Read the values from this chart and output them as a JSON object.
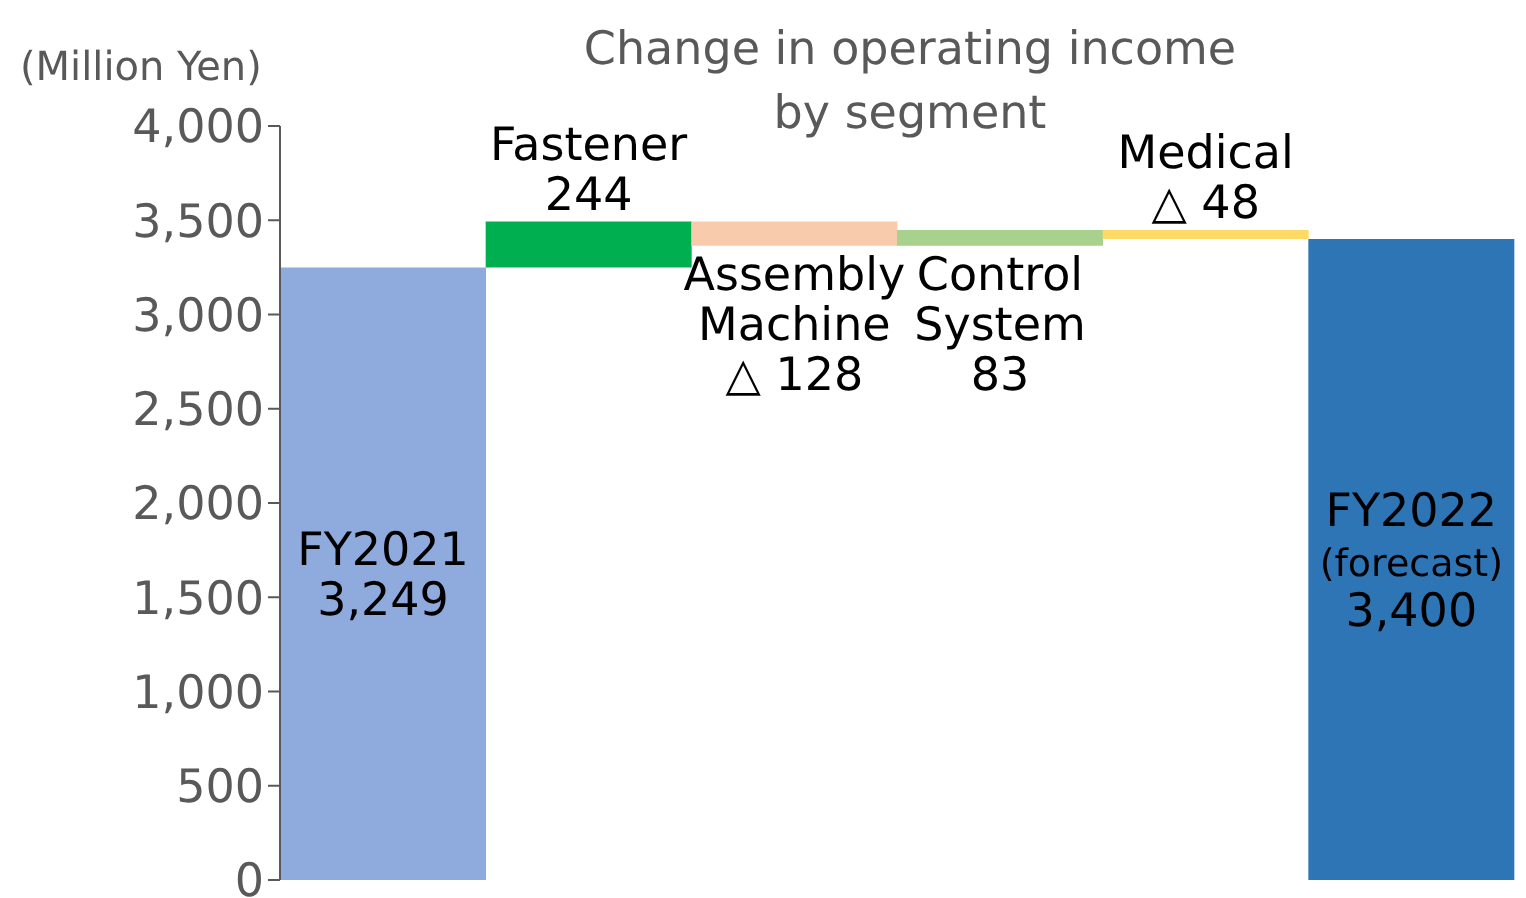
{
  "chart_data": {
    "type": "bar",
    "title": "Change in operating income\nby segment",
    "ylabel": "(Million Yen)",
    "categories": [
      "FY2021",
      "Fastener",
      "Assembly Machine",
      "Control System",
      "Medical",
      "FY2022 (forecast)"
    ],
    "values": [
      3249,
      244,
      -128,
      83,
      -48,
      3400
    ],
    "base": [
      0,
      3249,
      3493,
      3365,
      3448,
      0
    ],
    "colors": [
      "#8faadc",
      "#00b050",
      "#f8cbad",
      "#a9d18e",
      "#ffd966",
      "#2e75b6"
    ],
    "value_labels": [
      "3,249",
      "244",
      "△ 128",
      "83",
      "△ 48",
      "3,400"
    ],
    "ylim": [
      0,
      4000
    ],
    "yticks": [
      {
        "value": 0,
        "label": "0"
      },
      {
        "value": 500,
        "label": "500"
      },
      {
        "value": 1000,
        "label": "1,000"
      },
      {
        "value": 1500,
        "label": "1,500"
      },
      {
        "value": 2000,
        "label": "2,000"
      },
      {
        "value": 2500,
        "label": "2,500"
      },
      {
        "value": 3000,
        "label": "3,000"
      },
      {
        "value": 3500,
        "label": "3,500"
      },
      {
        "value": 4000,
        "label": "4,000"
      }
    ],
    "tick_labels": "y",
    "grid": false,
    "legend": false
  }
}
